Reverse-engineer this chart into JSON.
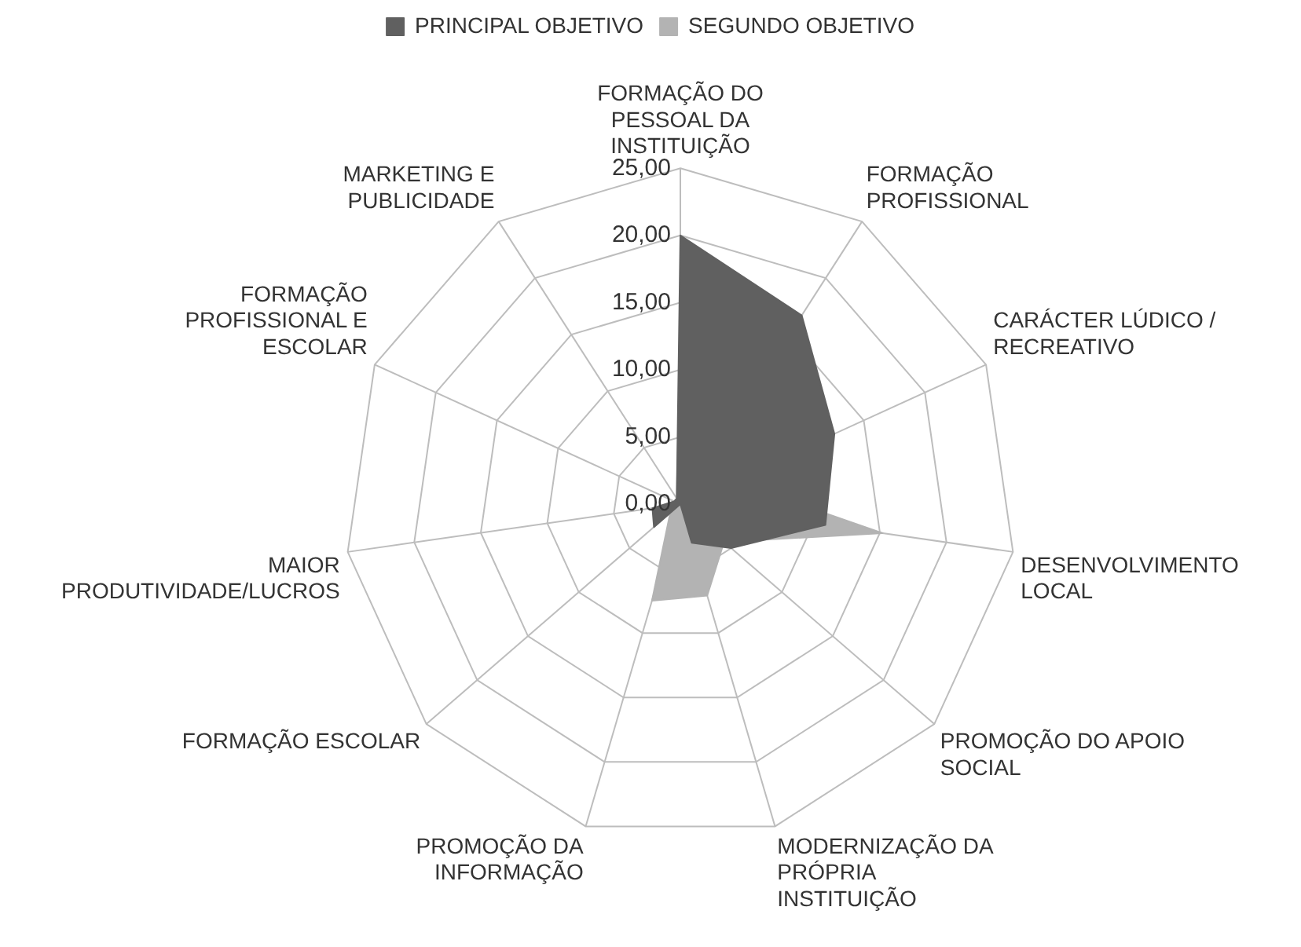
{
  "chart_data": {
    "type": "radar",
    "categories": [
      "FORMAÇÃO DO PESSOAL DA INSTITUIÇÃO",
      "FORMAÇÃO PROFISSIONAL",
      "CARÁCTER LÚDICO / RECREATIVO",
      "DESENVOLVIMENTO LOCAL",
      "PROMOÇÃO DO APOIO SOCIAL",
      "MODERNIZAÇÃO DA PRÓPRIA INSTITUIÇÃO",
      "PROMOÇÃO DA INFORMAÇÃO",
      "FORMAÇÃO ESCOLAR",
      "MAIOR PRODUTIVIDADE/LUCROS",
      "FORMAÇÃO PROFISSIONAL E ESCOLAR",
      "MARKETING E PUBLICIDADE"
    ],
    "series": [
      {
        "name": "PRINCIPAL OBJETIVO",
        "color": "#606060",
        "values": [
          20,
          16.7,
          12.6,
          10.9,
          5,
          3,
          0,
          2.6,
          2.1,
          0.5,
          0.5
        ]
      },
      {
        "name": "SEGUNDO OBJETIVO",
        "color": "#b3b3b3",
        "values": [
          13.5,
          4.5,
          4.2,
          15.2,
          4.3,
          7.1,
          7.5,
          1,
          1.8,
          0.5,
          0.5
        ]
      }
    ],
    "ylim": [
      0,
      25
    ],
    "yticks": [
      {
        "value": 0,
        "label": "0,00"
      },
      {
        "value": 5,
        "label": "5,00"
      },
      {
        "value": 10,
        "label": "10,00"
      },
      {
        "value": 15,
        "label": "15,00"
      },
      {
        "value": 20,
        "label": "20,00"
      },
      {
        "value": 25,
        "label": "25,00"
      }
    ],
    "grid": true,
    "legend": "top",
    "marker": "none"
  }
}
